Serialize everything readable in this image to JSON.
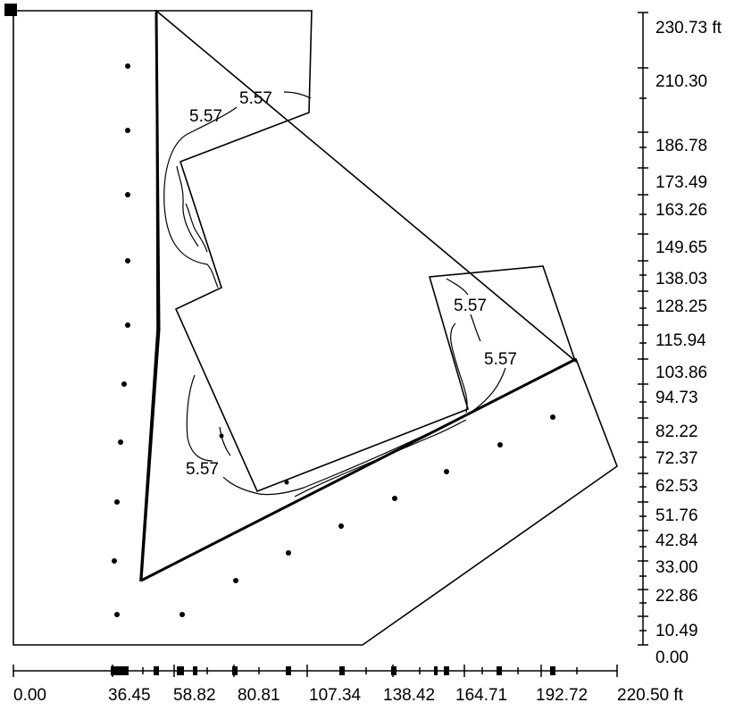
{
  "units": "ft",
  "x_axis": {
    "labels": [
      "0.00",
      "36.45",
      "58.82",
      "80.81",
      "107.34",
      "138.42",
      "164.71",
      "192.72",
      "220.50 ft"
    ]
  },
  "y_axis": {
    "labels": [
      "230.73 ft",
      "210.30",
      "186.78",
      "173.49",
      "163.26",
      "149.65",
      "138.03",
      "128.25",
      "115.94",
      "103.86",
      "94.73",
      "82.22",
      "72.37",
      "62.53",
      "51.76",
      "42.84",
      "33.00",
      "22.86",
      "10.49",
      "0.00"
    ]
  },
  "contour_labels": [
    "5.57",
    "5.57",
    "5.57",
    "5.57",
    "5.57"
  ],
  "points_count": 20
}
